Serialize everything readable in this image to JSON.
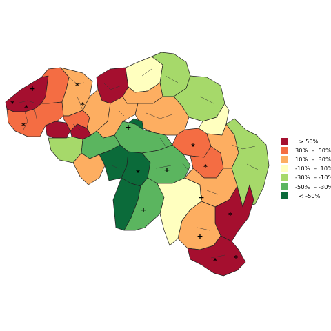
{
  "legend": {
    "items": [
      {
        "label": "  > 50%",
        "color": "#a50f2f"
      },
      {
        "label": "30%  –  50%",
        "color": "#f46d43"
      },
      {
        "label": "10%  –  30%",
        "color": "#fdae61"
      },
      {
        "label": "-10%  –  10%",
        "color": "#ffffbf"
      },
      {
        "label": "-30%  – -10%",
        "color": "#a6d96a"
      },
      {
        "label": "-50%  – -30%",
        "color": "#5bb55f"
      },
      {
        "label": "  < -50%",
        "color": "#0b6b3a"
      }
    ]
  },
  "markers": {
    "star": "*",
    "plus": "+"
  }
}
